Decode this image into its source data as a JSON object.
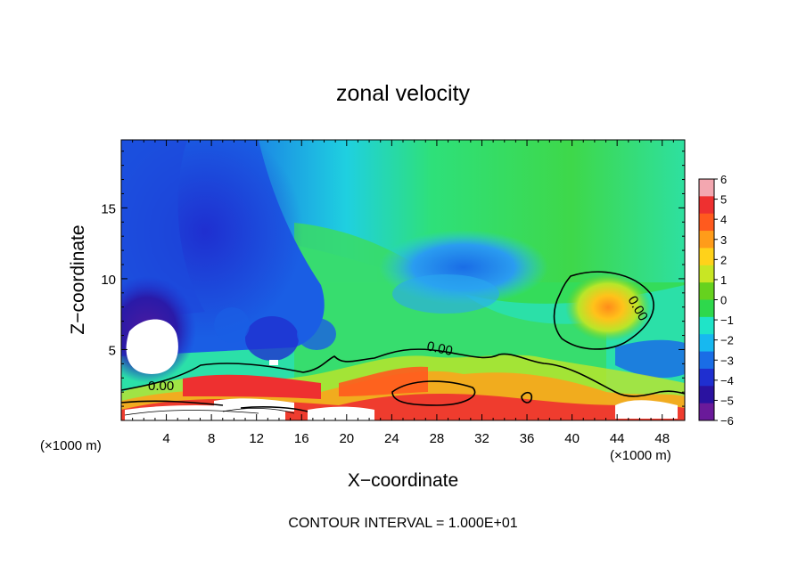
{
  "chart_data": {
    "type": "heatmap",
    "title": "zonal velocity",
    "xlabel": "X−coordinate",
    "ylabel": "Z−coordinate",
    "x_unit_left": "(×1000 m)",
    "x_unit_right": "(×1000 m)",
    "xlim": [
      0,
      50
    ],
    "ylim": [
      0,
      19.8
    ],
    "xticks": [
      4,
      8,
      12,
      16,
      20,
      24,
      28,
      32,
      36,
      40,
      44,
      48
    ],
    "yticks": [
      5,
      10,
      15
    ],
    "contour_labels": [
      "0.00",
      "0.00",
      "0.00"
    ],
    "footer": "CONTOUR INTERVAL = 1.000E+01",
    "colorbar": {
      "min": -6,
      "max": 6,
      "labels": [
        "6",
        "5",
        "4",
        "3",
        "2",
        "1",
        "0",
        "−1",
        "−2",
        "−3",
        "−4",
        "−5",
        "−6"
      ],
      "colors": [
        "#f3a7b0",
        "#ee3030",
        "#ff5a1e",
        "#ff9c1a",
        "#ffd21a",
        "#c8e624",
        "#66d21e",
        "#2ed84c",
        "#1fe4c8",
        "#17b8f0",
        "#1a6de6",
        "#1f2fd0",
        "#2a12a0",
        "#6a1a9a"
      ]
    },
    "features": [
      {
        "name": "strong-westerly-jet",
        "x": [
          0,
          50
        ],
        "z": [
          0,
          2.5
        ],
        "value": ">6"
      },
      {
        "name": "easterly-core",
        "x": [
          2,
          5
        ],
        "z": [
          4,
          7.5
        ],
        "value": "<-6"
      },
      {
        "name": "positive-cell",
        "x": [
          39,
          47
        ],
        "z": [
          5,
          10
        ],
        "value": 3
      }
    ]
  }
}
